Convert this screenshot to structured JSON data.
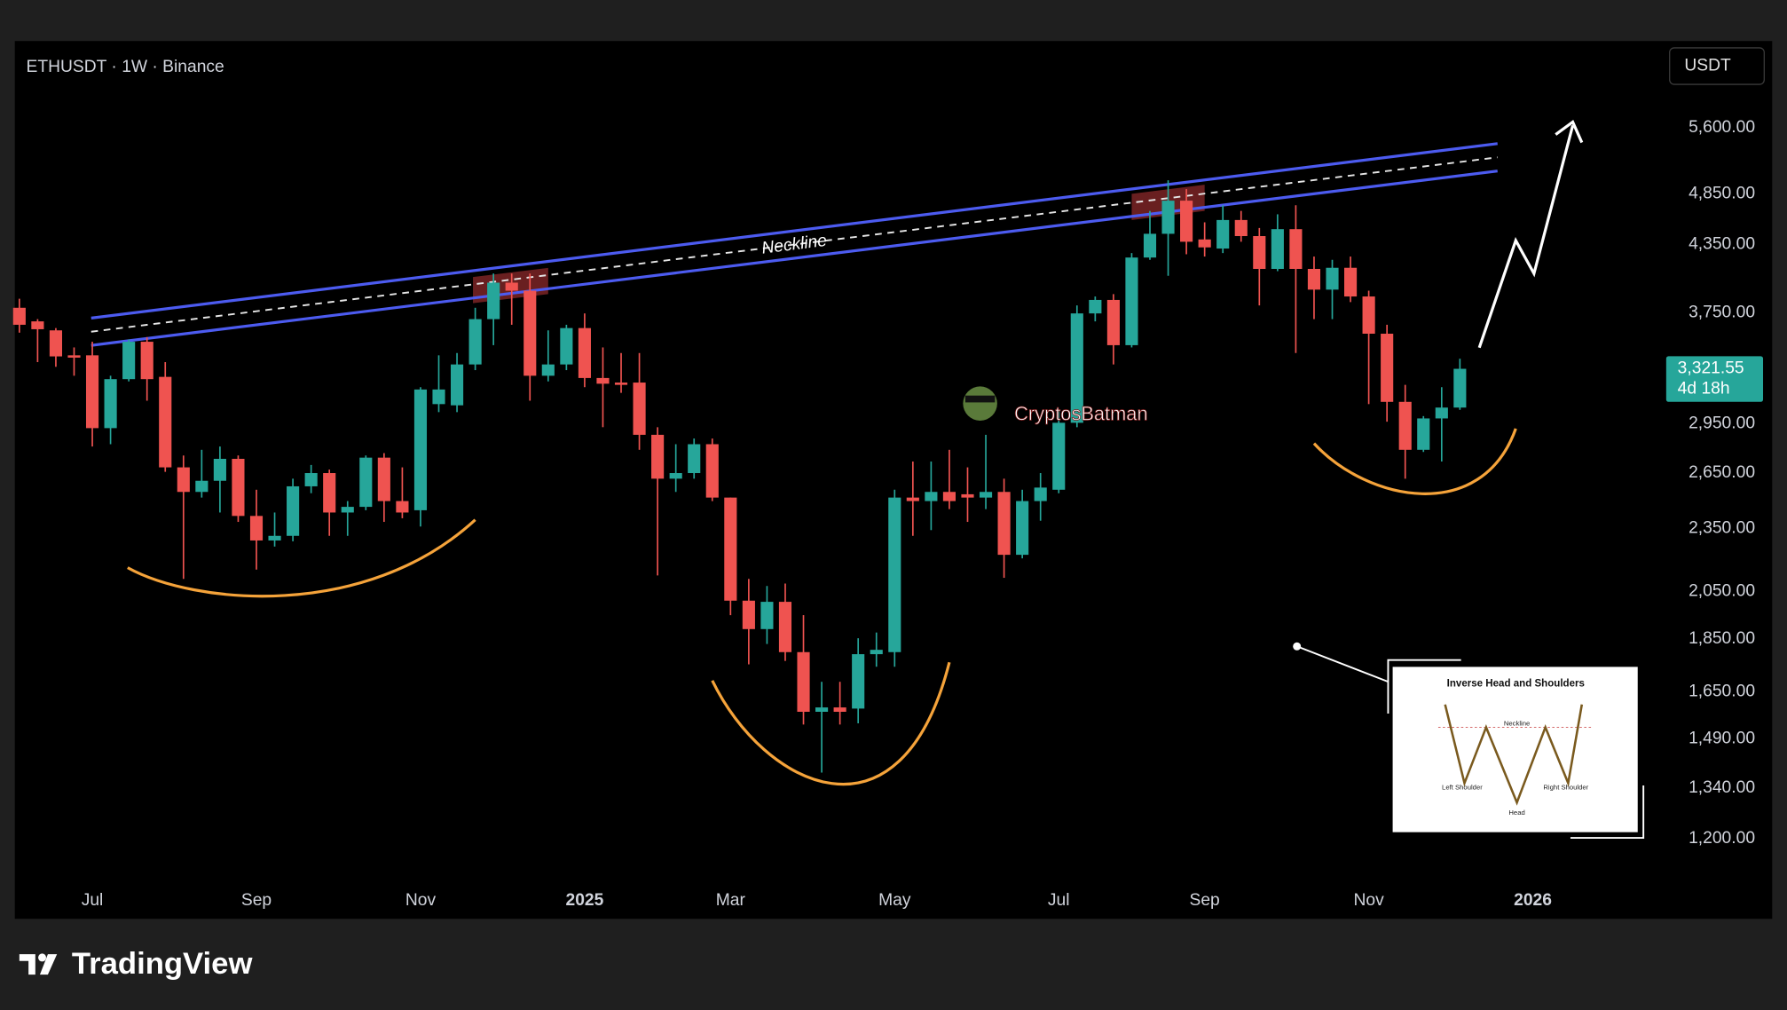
{
  "chart_data": {
    "type": "candlestick",
    "title": "ETHUSDT · 1W · Binance",
    "currency": "USDT",
    "up_color": "#26a69a",
    "down_color": "#ef5350",
    "log_scale": true,
    "grid": false,
    "categories": [
      null,
      null,
      null,
      null,
      "Jul",
      null,
      null,
      null,
      null,
      null,
      null,
      null,
      null,
      "Sep",
      null,
      null,
      null,
      null,
      null,
      null,
      null,
      null,
      "Nov",
      null,
      null,
      null,
      null,
      null,
      null,
      null,
      null,
      "2025",
      null,
      null,
      null,
      null,
      null,
      null,
      null,
      "Mar",
      null,
      null,
      null,
      null,
      null,
      null,
      null,
      null,
      "May",
      null,
      null,
      null,
      null,
      null,
      null,
      null,
      null,
      "Jul",
      null,
      null,
      null,
      null,
      null,
      null,
      null,
      "Sep",
      null,
      null,
      null,
      null,
      null,
      null,
      null,
      null,
      "Nov",
      null,
      null,
      null,
      null,
      null,
      null,
      null,
      null,
      "2026",
      null,
      null,
      null,
      null,
      null,
      null
    ],
    "open": [
      3791,
      3681,
      3610,
      3420,
      3420,
      2921,
      3248,
      3522,
      3264,
      2683,
      2544,
      2606,
      2733,
      2415,
      2290,
      2313,
      2575,
      2650,
      2433,
      2463,
      2740,
      2494,
      2445,
      3077,
      3069,
      3353,
      3699,
      4003,
      3934,
      3272,
      3353,
      3628,
      3256,
      3224,
      3224,
      2879,
      2618,
      2650,
      2821,
      2513,
      2010,
      1890,
      2005,
      1798,
      1580,
      1595,
      1591,
      1790,
      1798,
      2513,
      2494,
      2544,
      2531,
      2513,
      2544,
      2220,
      2494,
      2556,
      2955,
      3745,
      3856,
      3496,
      4227,
      4450,
      4781,
      4396,
      4310,
      4585,
      4428,
      4124,
      4495,
      4124,
      3943,
      4134,
      3885,
      3584,
      3092,
      2787,
      2983,
      3054,
      null,
      null,
      null,
      null,
      null,
      null,
      null,
      null,
      null,
      null
    ],
    "high": [
      3866,
      3699,
      3628,
      3479,
      3522,
      3272,
      3540,
      3557,
      3370,
      2753,
      2787,
      2807,
      2753,
      2556,
      2433,
      2618,
      2697,
      2670,
      2494,
      2753,
      2767,
      2683,
      3192,
      3420,
      3437,
      3791,
      4083,
      4083,
      4083,
      3610,
      3654,
      3745,
      3479,
      3437,
      3437,
      2927,
      2821,
      2856,
      2856,
      2513,
      2107,
      2075,
      2086,
      1948,
      1686,
      1686,
      1853,
      1876,
      2556,
      2717,
      2717,
      2787,
      2683,
      2879,
      2618,
      2556,
      2650,
      3039,
      3810,
      3885,
      3905,
      4268,
      4676,
      4997,
      4902,
      4562,
      4734,
      4676,
      4506,
      4642,
      4734,
      4236,
      4206,
      4236,
      3934,
      3654,
      3208,
      2998,
      3192,
      3395,
      null,
      null,
      null,
      null,
      null,
      null,
      null,
      null,
      null,
      null
    ],
    "low": [
      3592,
      3370,
      3336,
      3272,
      2807,
      2821,
      3232,
      3100,
      2657,
      2107,
      2513,
      2433,
      2384,
      2150,
      2260,
      2286,
      2537,
      2313,
      2313,
      2445,
      2384,
      2403,
      2360,
      3024,
      3024,
      3312,
      3496,
      3654,
      3100,
      3232,
      3312,
      3192,
      2927,
      3153,
      2787,
      2123,
      2544,
      2618,
      2494,
      1948,
      1751,
      1830,
      1764,
      1537,
      1385,
      1537,
      1541,
      1742,
      1742,
      2313,
      2342,
      2451,
      2384,
      2451,
      2112,
      2203,
      2390,
      2537,
      2927,
      3681,
      3353,
      3479,
      4206,
      4063,
      4257,
      4236,
      4268,
      4374,
      3810,
      4104,
      3437,
      3699,
      3699,
      3838,
      3077,
      2962,
      2618,
      2774,
      2717,
      3039,
      null,
      null,
      null,
      null,
      null,
      null,
      null,
      null,
      null,
      null
    ],
    "close": [
      3654,
      3619,
      3412,
      3403,
      2921,
      3248,
      3522,
      3248,
      2683,
      2544,
      2606,
      2733,
      2415,
      2290,
      2313,
      2575,
      2650,
      2433,
      2463,
      2740,
      2494,
      2433,
      3176,
      3176,
      3353,
      3699,
      4003,
      3934,
      3272,
      3353,
      3628,
      3256,
      3216,
      3208,
      2879,
      2618,
      2650,
      2821,
      2513,
      2010,
      1890,
      2005,
      1798,
      1580,
      1595,
      1580,
      1790,
      1807,
      2513,
      2494,
      2544,
      2494,
      2513,
      2544,
      2220,
      2494,
      2568,
      2955,
      3745,
      3856,
      3496,
      4227,
      4450,
      4781,
      4374,
      4321,
      4585,
      4428,
      4124,
      4495,
      4124,
      3943,
      4134,
      3885,
      3584,
      3092,
      2787,
      2983,
      3054,
      3321.55,
      null,
      null,
      null,
      null,
      null,
      null,
      null,
      null,
      null,
      null
    ],
    "ylim": [
      1009,
      6723
    ],
    "yticks": [
      {
        "value": 5600,
        "label": "5,600.00"
      },
      {
        "value": 4850,
        "label": "4,850.00"
      },
      {
        "value": 4350,
        "label": "4,350.00"
      },
      {
        "value": 3750,
        "label": "3,750.00"
      },
      {
        "value": 2950,
        "label": "2,950.00"
      },
      {
        "value": 2650,
        "label": "2,650.00"
      },
      {
        "value": 2350,
        "label": "2,350.00"
      },
      {
        "value": 2050,
        "label": "2,050.00"
      },
      {
        "value": 1850,
        "label": "1,850.00"
      },
      {
        "value": 1650,
        "label": "1,650.00"
      },
      {
        "value": 1490,
        "label": "1,490.00"
      },
      {
        "value": 1340,
        "label": "1,340.00"
      },
      {
        "value": 1200,
        "label": "1,200.00"
      }
    ],
    "last_price": {
      "value": 3321.55,
      "label": "3,321.55"
    },
    "countdown": "4d 18h",
    "neckline_label": "Neckline",
    "watermark": "CryptosBatman",
    "inset": {
      "title": "Inverse Head and Shoulders",
      "neckline": "Neckline",
      "left_shoulder": "Left Shoulder",
      "head": "Head",
      "right_shoulder": "Right Shoulder"
    }
  },
  "footer": {
    "brand": "TradingView"
  }
}
